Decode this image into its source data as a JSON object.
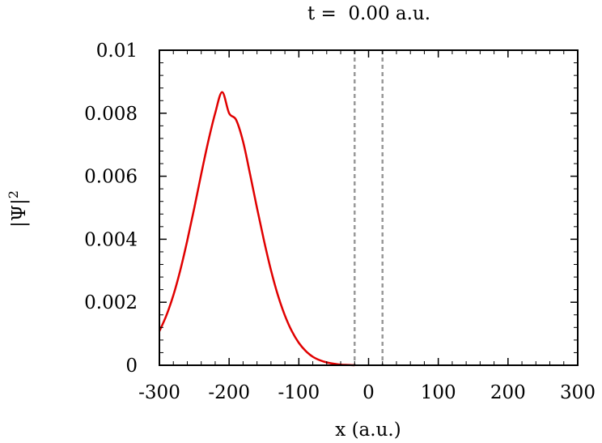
{
  "chart_data": {
    "type": "line",
    "title": "t =  0.00 a.u.",
    "xlabel": "x (a.u.)",
    "ylabel": {
      "base": "|Ψ|",
      "sup": "2"
    },
    "xlim": [
      -300,
      300
    ],
    "ylim": [
      0,
      0.01
    ],
    "x_ticks": [
      -300,
      -200,
      -100,
      0,
      100,
      200,
      300
    ],
    "x_tick_labels": [
      "-300",
      "-200",
      "-100",
      "0",
      "100",
      "200",
      "300"
    ],
    "y_ticks": [
      0,
      0.002,
      0.004,
      0.006,
      0.008,
      0.01
    ],
    "y_tick_labels": [
      "0",
      "0.002",
      "0.004",
      "0.006",
      "0.008",
      "0.01"
    ],
    "grid": false,
    "series": [
      {
        "color": "#e00000",
        "x": [
          -300,
          -290,
          -280,
          -270,
          -260,
          -250,
          -240,
          -230,
          -220,
          -210,
          -200,
          -190,
          -180,
          -170,
          -160,
          -150,
          -140,
          -130,
          -120,
          -110,
          -100,
          -90,
          -80,
          -70,
          -60,
          -50,
          -40,
          -30,
          -20
        ],
        "y": [
          0.00108,
          0.00158,
          0.00222,
          0.00302,
          0.00396,
          0.00499,
          0.00607,
          0.0071,
          0.008,
          0.00867,
          0.008,
          0.00779,
          0.0071,
          0.00607,
          0.00499,
          0.00396,
          0.00302,
          0.00222,
          0.00158,
          0.00108,
          0.00071,
          0.00045,
          0.00027,
          0.00016,
          9e-05,
          5e-05,
          2e-05,
          1e-05,
          0.0
        ]
      }
    ],
    "barriers": {
      "color": "#999999",
      "x": [
        -20,
        20
      ]
    }
  }
}
